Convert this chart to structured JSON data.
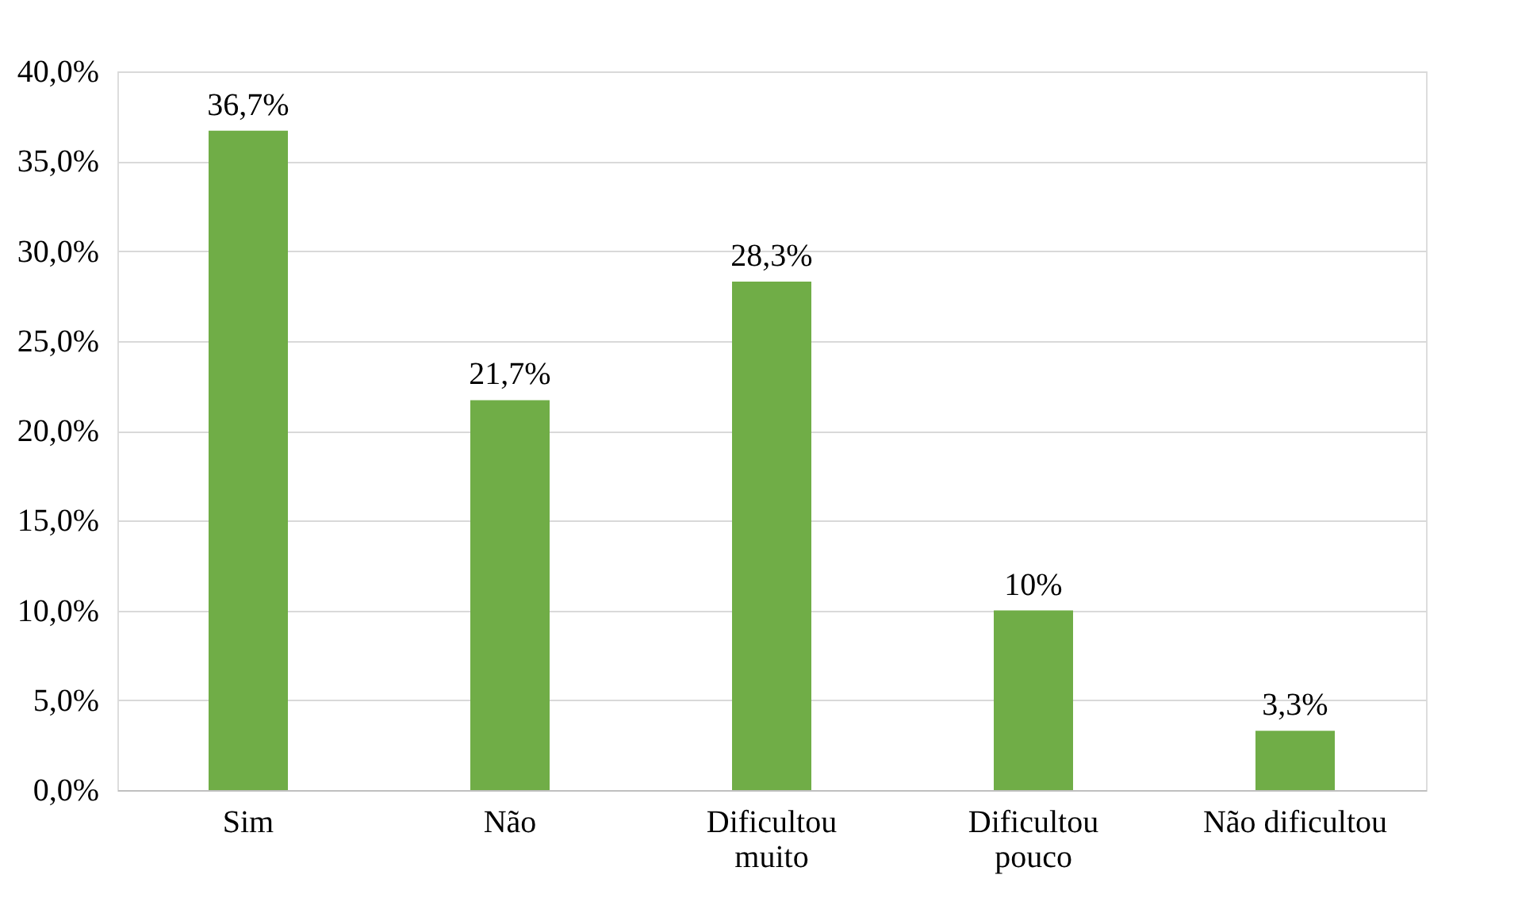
{
  "chart_data": {
    "type": "bar",
    "categories": [
      "Sim",
      "Não",
      "Dificultou\nmuito",
      "Dificultou\npouco",
      "Não dificultou"
    ],
    "values": [
      36.7,
      21.7,
      28.3,
      10,
      3.3
    ],
    "value_labels": [
      "36,7%",
      "21,7%",
      "28,3%",
      "10%",
      "3,3%"
    ],
    "color": "#70ad47",
    "ylim": [
      0,
      40
    ],
    "yticks": [
      {
        "value": 0,
        "label": "0,0%"
      },
      {
        "value": 5,
        "label": "5,0%"
      },
      {
        "value": 10,
        "label": "10,0%"
      },
      {
        "value": 15,
        "label": "15,0%"
      },
      {
        "value": 20,
        "label": "20,0%"
      },
      {
        "value": 25,
        "label": "25,0%"
      },
      {
        "value": 30,
        "label": "30,0%"
      },
      {
        "value": 35,
        "label": "35,0%"
      },
      {
        "value": 40,
        "label": "40,0%"
      }
    ],
    "grid": "y"
  }
}
